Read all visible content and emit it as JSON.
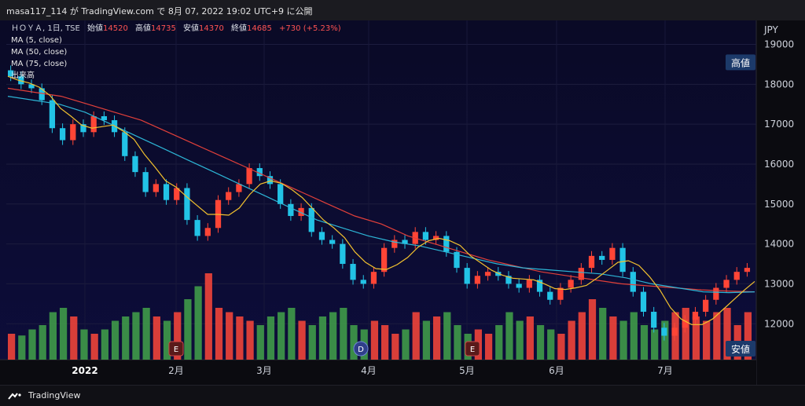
{
  "header": {
    "text": "masa117_114 が TradingView.com で 8月 07, 2022 19:02 UTC+9 に公開"
  },
  "footer": {
    "brand": "TradingView"
  },
  "legend": {
    "symbol": "ＨＯＹＡ, 1日, TSE",
    "open_label": "始値",
    "open_value": "14520",
    "high_label": "高値",
    "high_value": "14735",
    "low_label": "安値",
    "low_value": "14370",
    "close_label": "終値",
    "close_value": "14685",
    "change": "+730 (+5.23%)",
    "ma5": "MA (5, close)",
    "ma50": "MA (50, close)",
    "ma75": "MA (75, close)",
    "volume": "出来高"
  },
  "chart_data": {
    "type": "candlestick",
    "currency": "JPY",
    "y_axis_ticks": [
      12000,
      13000,
      14000,
      15000,
      16000,
      17000,
      18000,
      19000
    ],
    "ylim": [
      11100,
      19600
    ],
    "x_axis_labels": [
      "2022",
      "2月",
      "3月",
      "4月",
      "5月",
      "6月",
      "7月"
    ],
    "grid": true,
    "colors": {
      "up": "#ff4536",
      "down": "#22c3e6",
      "vol_up": "#f0443a",
      "vol_down": "#3f9a49",
      "ma5": "#f2c12e",
      "ma50": "#2db6d6",
      "ma75": "#e2403a",
      "background_top": "#0a0a26",
      "background_bottom": "#0d0d3a"
    },
    "high_label": "高値",
    "low_label": "安値",
    "event_markers": [
      {
        "label": "E",
        "month": "2月"
      },
      {
        "label": "D",
        "month": "4月"
      },
      {
        "label": "E",
        "month": "5月"
      }
    ],
    "close_path": [
      18200,
      18000,
      17900,
      17600,
      16900,
      16600,
      17000,
      16800,
      17200,
      17100,
      16800,
      16200,
      15800,
      15300,
      15500,
      15100,
      15400,
      14600,
      14200,
      14400,
      15100,
      15300,
      15500,
      15900,
      15700,
      15500,
      15000,
      14700,
      14900,
      14300,
      14100,
      14000,
      13500,
      13100,
      13000,
      13300,
      13900,
      14100,
      14000,
      14300,
      14100,
      14200,
      13800,
      13400,
      13000,
      13200,
      13300,
      13200,
      13000,
      12900,
      13100,
      12800,
      12600,
      12900,
      13100,
      13400,
      13700,
      13600,
      13900,
      13300,
      12800,
      12300,
      11900,
      11700,
      11900,
      12100,
      12300,
      12600,
      12900,
      13100,
      13300,
      13400
    ],
    "ma50_path": [
      17700,
      17600,
      17500,
      17300,
      17000,
      16700,
      16400,
      16100,
      15800,
      15500,
      15200,
      14900,
      14600,
      14400,
      14200,
      14050,
      13950,
      13800,
      13650,
      13500,
      13400,
      13350,
      13300,
      13250,
      13150,
      13000,
      12900,
      12800,
      12780,
      12800
    ],
    "ma75_path": [
      17900,
      17800,
      17700,
      17500,
      17300,
      17100,
      16800,
      16500,
      16200,
      15900,
      15600,
      15300,
      15000,
      14700,
      14500,
      14200,
      14000,
      13800,
      13600,
      13450,
      13300,
      13200,
      13100,
      13000,
      12950,
      12900,
      12850,
      12820,
      12800
    ],
    "volume_relative": [
      0.3,
      0.28,
      0.35,
      0.4,
      0.55,
      0.6,
      0.5,
      0.35,
      0.3,
      0.35,
      0.45,
      0.5,
      0.55,
      0.6,
      0.5,
      0.45,
      0.55,
      0.7,
      0.85,
      1.0,
      0.6,
      0.55,
      0.5,
      0.45,
      0.4,
      0.5,
      0.55,
      0.6,
      0.45,
      0.4,
      0.5,
      0.55,
      0.6,
      0.4,
      0.35,
      0.45,
      0.4,
      0.3,
      0.35,
      0.55,
      0.45,
      0.5,
      0.55,
      0.4,
      0.3,
      0.35,
      0.3,
      0.4,
      0.55,
      0.45,
      0.5,
      0.4,
      0.35,
      0.3,
      0.45,
      0.55,
      0.7,
      0.6,
      0.5,
      0.45,
      0.55,
      0.4,
      0.35,
      0.45,
      0.55,
      0.6,
      0.5,
      0.45,
      0.55,
      0.6,
      0.4,
      0.55
    ]
  }
}
